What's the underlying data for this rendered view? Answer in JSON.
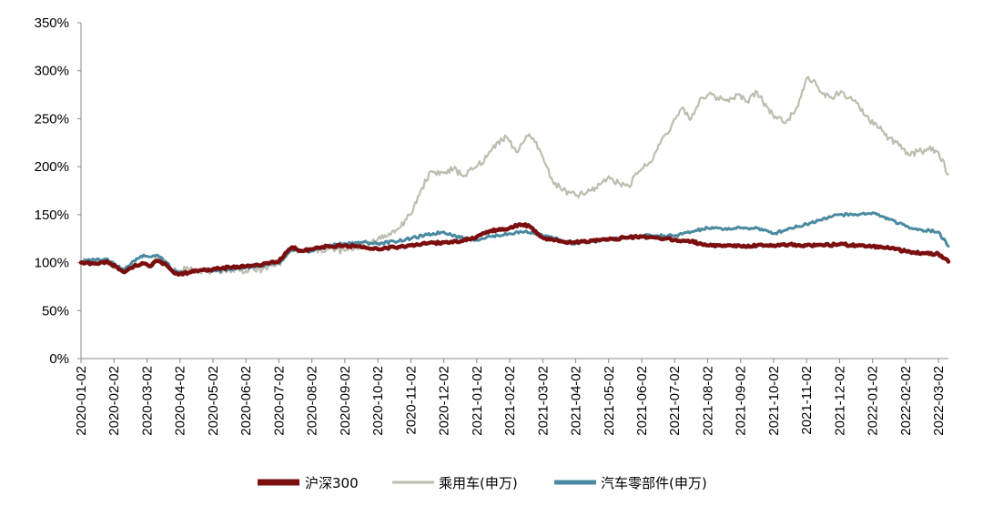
{
  "chart_data": {
    "type": "line",
    "title": "",
    "xlabel": "",
    "ylabel": "",
    "ylim": [
      0,
      350
    ],
    "y_ticks": [
      0,
      50,
      100,
      150,
      200,
      250,
      300,
      350
    ],
    "y_tick_labels": [
      "0%",
      "50%",
      "100%",
      "150%",
      "200%",
      "250%",
      "300%",
      "350%"
    ],
    "x_tick_labels": [
      "2020-01-02",
      "2020-02-02",
      "2020-03-02",
      "2020-04-02",
      "2020-05-02",
      "2020-06-02",
      "2020-07-02",
      "2020-08-02",
      "2020-09-02",
      "2020-10-02",
      "2020-11-02",
      "2020-12-02",
      "2021-01-02",
      "2021-02-02",
      "2021-03-02",
      "2021-04-02",
      "2021-05-02",
      "2021-06-02",
      "2021-07-02",
      "2021-08-02",
      "2021-09-02",
      "2021-10-02",
      "2021-11-02",
      "2021-12-02",
      "2022-01-02",
      "2022-02-02",
      "2022-03-02"
    ],
    "x_range_months": [
      0,
      26.3
    ],
    "legend_position": "bottom",
    "series": [
      {
        "name": "沪深300",
        "color": "#7b0f0f",
        "points": [
          [
            0,
            100
          ],
          [
            0.4,
            99
          ],
          [
            0.8,
            101
          ],
          [
            1.1,
            95
          ],
          [
            1.3,
            90
          ],
          [
            1.6,
            96
          ],
          [
            1.9,
            99
          ],
          [
            2.1,
            96
          ],
          [
            2.3,
            102
          ],
          [
            2.6,
            97
          ],
          [
            2.8,
            90
          ],
          [
            3.0,
            88
          ],
          [
            3.3,
            90
          ],
          [
            3.6,
            92
          ],
          [
            4.0,
            93
          ],
          [
            4.5,
            95
          ],
          [
            5.0,
            96
          ],
          [
            5.5,
            98
          ],
          [
            6.0,
            101
          ],
          [
            6.2,
            110
          ],
          [
            6.4,
            116
          ],
          [
            6.7,
            112
          ],
          [
            7.0,
            114
          ],
          [
            7.5,
            117
          ],
          [
            8.0,
            118
          ],
          [
            8.5,
            116
          ],
          [
            9.0,
            114
          ],
          [
            9.5,
            116
          ],
          [
            10.0,
            118
          ],
          [
            10.5,
            120
          ],
          [
            11.0,
            121
          ],
          [
            11.5,
            122
          ],
          [
            12.0,
            127
          ],
          [
            12.3,
            132
          ],
          [
            12.6,
            134
          ],
          [
            13.0,
            136
          ],
          [
            13.3,
            140
          ],
          [
            13.6,
            138
          ],
          [
            14.0,
            126
          ],
          [
            14.3,
            124
          ],
          [
            14.6,
            122
          ],
          [
            15.0,
            121
          ],
          [
            15.5,
            123
          ],
          [
            16.0,
            124
          ],
          [
            16.5,
            126
          ],
          [
            17.0,
            127
          ],
          [
            17.5,
            126
          ],
          [
            18.0,
            124
          ],
          [
            18.5,
            122
          ],
          [
            19.0,
            118
          ],
          [
            19.5,
            118
          ],
          [
            20.0,
            117
          ],
          [
            20.5,
            118
          ],
          [
            21.0,
            118
          ],
          [
            21.5,
            119
          ],
          [
            22.0,
            118
          ],
          [
            22.5,
            118
          ],
          [
            23.0,
            119
          ],
          [
            23.5,
            118
          ],
          [
            24.0,
            117
          ],
          [
            24.5,
            115
          ],
          [
            25.0,
            112
          ],
          [
            25.5,
            110
          ],
          [
            26.0,
            109
          ],
          [
            26.3,
            101
          ]
        ]
      },
      {
        "name": "乘用车(申万)",
        "color": "#bdbdaf",
        "points": [
          [
            0,
            101
          ],
          [
            0.4,
            101
          ],
          [
            0.8,
            100
          ],
          [
            1.1,
            96
          ],
          [
            1.3,
            91
          ],
          [
            1.6,
            97
          ],
          [
            1.9,
            100
          ],
          [
            2.1,
            98
          ],
          [
            2.3,
            104
          ],
          [
            2.6,
            99
          ],
          [
            2.8,
            93
          ],
          [
            3.0,
            92
          ],
          [
            3.3,
            93
          ],
          [
            3.6,
            92
          ],
          [
            4.0,
            91
          ],
          [
            4.5,
            93
          ],
          [
            5.0,
            92
          ],
          [
            5.5,
            93
          ],
          [
            6.0,
            98
          ],
          [
            6.2,
            107
          ],
          [
            6.4,
            113
          ],
          [
            6.7,
            111
          ],
          [
            7.0,
            112
          ],
          [
            7.5,
            114
          ],
          [
            8.0,
            112
          ],
          [
            8.5,
            118
          ],
          [
            9.0,
            125
          ],
          [
            9.3,
            128
          ],
          [
            9.6,
            135
          ],
          [
            10.0,
            150
          ],
          [
            10.3,
            175
          ],
          [
            10.6,
            195
          ],
          [
            11.0,
            193
          ],
          [
            11.3,
            198
          ],
          [
            11.6,
            190
          ],
          [
            12.0,
            200
          ],
          [
            12.3,
            210
          ],
          [
            12.6,
            225
          ],
          [
            12.9,
            231
          ],
          [
            13.2,
            215
          ],
          [
            13.5,
            232
          ],
          [
            13.8,
            226
          ],
          [
            14.0,
            210
          ],
          [
            14.3,
            185
          ],
          [
            14.6,
            175
          ],
          [
            15.0,
            170
          ],
          [
            15.3,
            172
          ],
          [
            15.6,
            178
          ],
          [
            16.0,
            190
          ],
          [
            16.3,
            183
          ],
          [
            16.6,
            180
          ],
          [
            17.0,
            198
          ],
          [
            17.3,
            205
          ],
          [
            17.6,
            228
          ],
          [
            17.9,
            242
          ],
          [
            18.2,
            260
          ],
          [
            18.5,
            250
          ],
          [
            18.8,
            272
          ],
          [
            19.0,
            275
          ],
          [
            19.3,
            272
          ],
          [
            19.6,
            270
          ],
          [
            19.9,
            275
          ],
          [
            20.2,
            268
          ],
          [
            20.5,
            278
          ],
          [
            20.8,
            262
          ],
          [
            21.1,
            250
          ],
          [
            21.4,
            248
          ],
          [
            21.7,
            262
          ],
          [
            22.0,
            292
          ],
          [
            22.2,
            290
          ],
          [
            22.4,
            278
          ],
          [
            22.7,
            272
          ],
          [
            23.0,
            276
          ],
          [
            23.3,
            272
          ],
          [
            23.6,
            262
          ],
          [
            23.9,
            248
          ],
          [
            24.2,
            240
          ],
          [
            24.5,
            230
          ],
          [
            24.8,
            222
          ],
          [
            25.1,
            212
          ],
          [
            25.4,
            216
          ],
          [
            25.7,
            218
          ],
          [
            26.0,
            215
          ],
          [
            26.3,
            192
          ]
        ]
      },
      {
        "name": "汽车零部件(申万)",
        "color": "#4a8aa0",
        "points": [
          [
            0,
            101
          ],
          [
            0.4,
            103
          ],
          [
            0.8,
            104
          ],
          [
            1.1,
            96
          ],
          [
            1.3,
            92
          ],
          [
            1.6,
            102
          ],
          [
            1.9,
            108
          ],
          [
            2.1,
            106
          ],
          [
            2.3,
            108
          ],
          [
            2.6,
            100
          ],
          [
            2.8,
            91
          ],
          [
            3.0,
            89
          ],
          [
            3.3,
            90
          ],
          [
            3.6,
            92
          ],
          [
            4.0,
            91
          ],
          [
            4.5,
            93
          ],
          [
            5.0,
            95
          ],
          [
            5.5,
            97
          ],
          [
            6.0,
            99
          ],
          [
            6.2,
            106
          ],
          [
            6.4,
            113
          ],
          [
            6.7,
            112
          ],
          [
            7.0,
            112
          ],
          [
            7.5,
            118
          ],
          [
            8.0,
            120
          ],
          [
            8.5,
            121
          ],
          [
            9.0,
            120
          ],
          [
            9.5,
            122
          ],
          [
            10.0,
            125
          ],
          [
            10.5,
            129
          ],
          [
            11.0,
            132
          ],
          [
            11.5,
            126
          ],
          [
            12.0,
            124
          ],
          [
            12.5,
            128
          ],
          [
            13.0,
            130
          ],
          [
            13.5,
            133
          ],
          [
            14.0,
            128
          ],
          [
            14.3,
            126
          ],
          [
            14.6,
            122
          ],
          [
            15.0,
            120
          ],
          [
            15.5,
            122
          ],
          [
            16.0,
            124
          ],
          [
            16.5,
            126
          ],
          [
            17.0,
            128
          ],
          [
            17.5,
            128
          ],
          [
            18.0,
            128
          ],
          [
            18.5,
            132
          ],
          [
            19.0,
            136
          ],
          [
            19.5,
            135
          ],
          [
            20.0,
            136
          ],
          [
            20.5,
            136
          ],
          [
            21.0,
            130
          ],
          [
            21.5,
            136
          ],
          [
            22.0,
            140
          ],
          [
            22.5,
            146
          ],
          [
            23.0,
            150
          ],
          [
            23.5,
            150
          ],
          [
            24.0,
            152
          ],
          [
            24.5,
            145
          ],
          [
            25.0,
            138
          ],
          [
            25.5,
            134
          ],
          [
            26.0,
            132
          ],
          [
            26.3,
            117
          ]
        ]
      }
    ]
  }
}
